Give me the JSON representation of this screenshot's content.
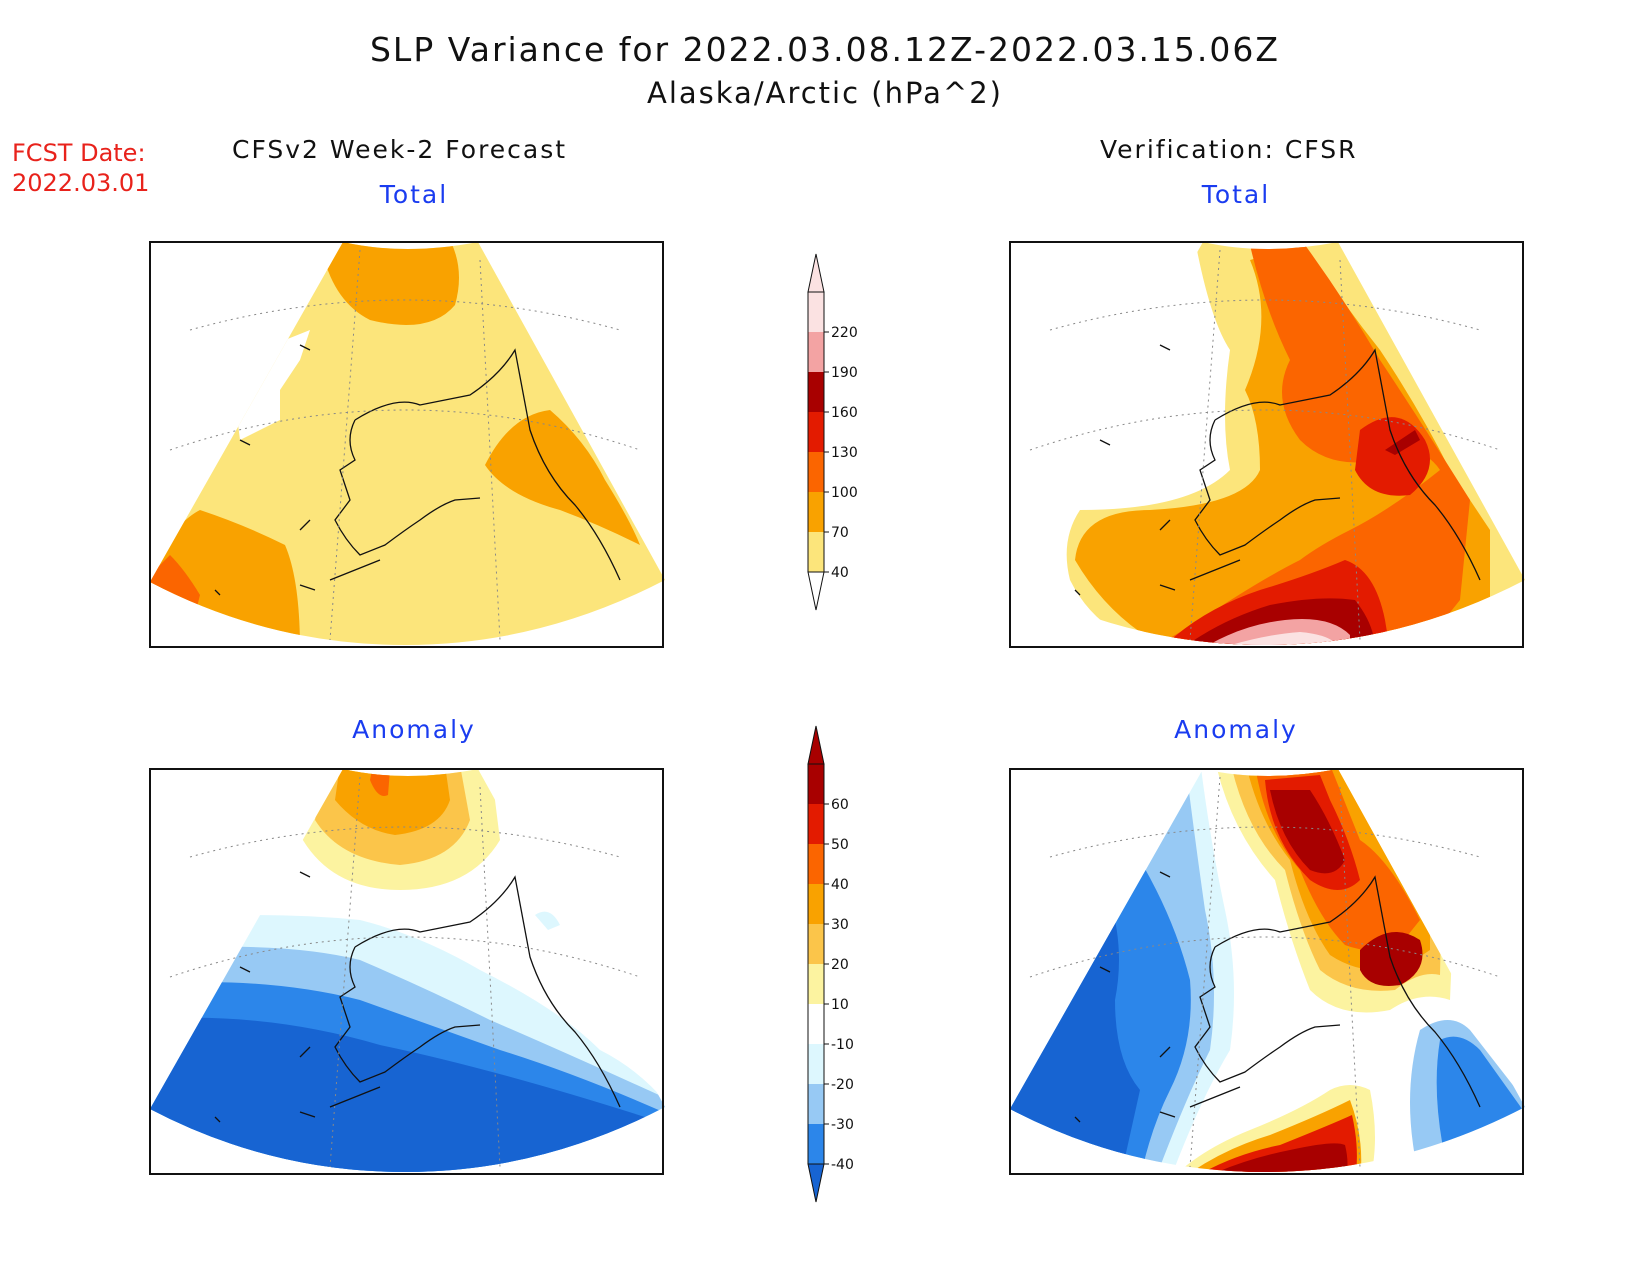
{
  "title": {
    "line1": "SLP Variance for 2022.03.08.12Z-2022.03.15.06Z",
    "line2": "Alaska/Arctic (hPa^2)"
  },
  "fcst_date": {
    "label": "FCST Date:",
    "value": "2022.03.01"
  },
  "columns": {
    "left": "CFSv2 Week-2 Forecast",
    "right": "Verification: CFSR"
  },
  "panels": {
    "forecast_total": "Total",
    "verification_total": "Total",
    "forecast_anomaly": "Anomaly",
    "verification_anomaly": "Anomaly"
  },
  "colorbars": {
    "total": {
      "ticks": [
        "40",
        "70",
        "100",
        "130",
        "160",
        "190",
        "220"
      ],
      "colors": [
        "#fce57b",
        "#f9a200",
        "#fb6500",
        "#e31b00",
        "#a80000",
        "#f3a3a3",
        "#fbe2e2"
      ]
    },
    "anomaly": {
      "ticks": [
        "-40",
        "-30",
        "-20",
        "-10",
        "10",
        "20",
        "30",
        "40",
        "50",
        "60"
      ],
      "colors": [
        "#1764d2",
        "#2c86ea",
        "#97c9f4",
        "#ddf7fe",
        "#ffffff",
        "#fcf3a0",
        "#fbc54a",
        "#f9a200",
        "#fb6500",
        "#e31b00",
        "#a80000"
      ]
    }
  }
}
